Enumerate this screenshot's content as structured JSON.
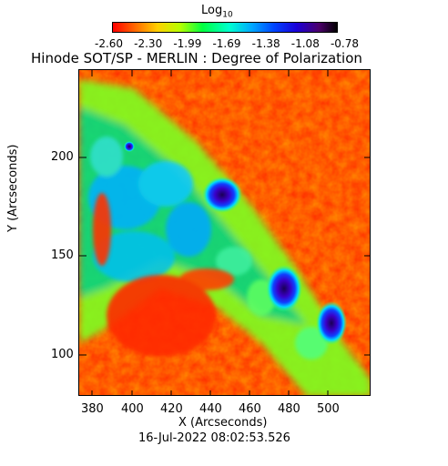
{
  "colorbar": {
    "title_main": "Log",
    "title_sub": "10",
    "ticks": [
      "-2.60",
      "-2.30",
      "-1.99",
      "-1.69",
      "-1.38",
      "-1.08",
      "-0.78"
    ]
  },
  "plot": {
    "title": "Hinode SOT/SP - MERLIN : Degree of Polarization",
    "xlabel": "X (Arcseconds)",
    "ylabel": "Y (Arcseconds)",
    "xticks": [
      "380",
      "400",
      "420",
      "440",
      "460",
      "480",
      "500"
    ],
    "yticks": [
      "200",
      "150",
      "100"
    ],
    "timestamp": "16-Jul-2022 08:02:53.526"
  }
}
